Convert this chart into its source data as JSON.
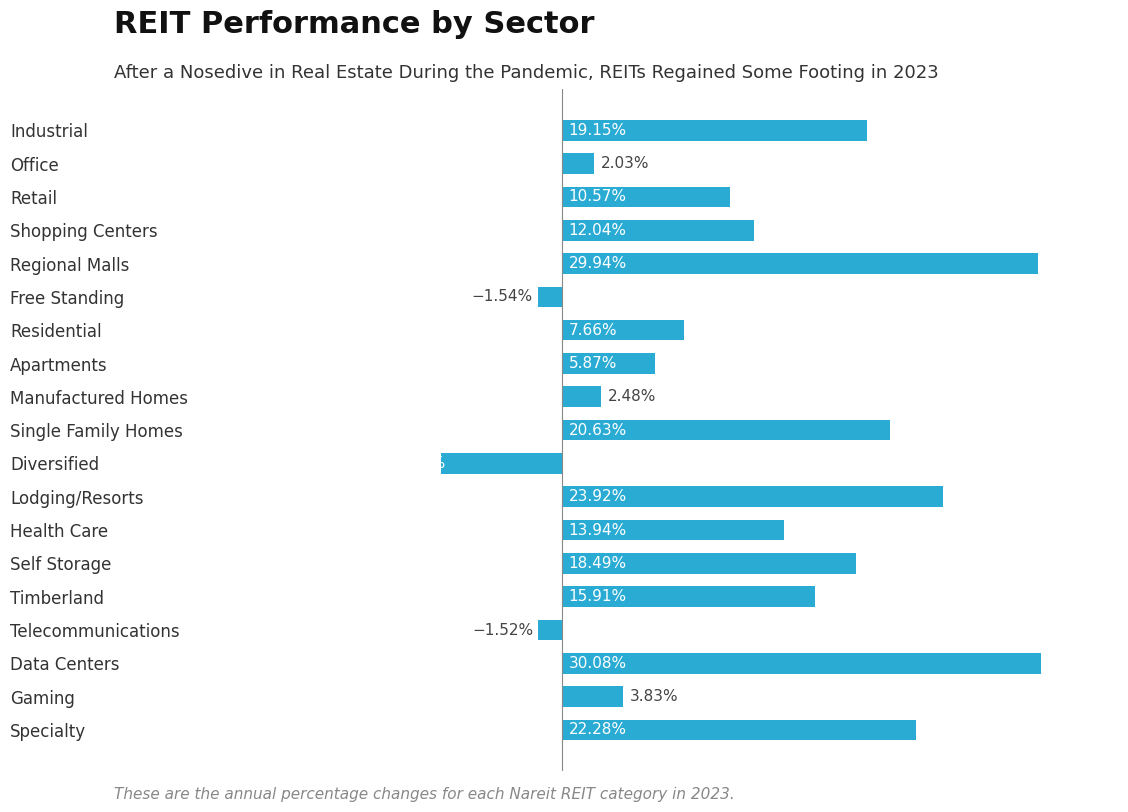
{
  "title": "REIT Performance by Sector",
  "subtitle": "After a Nosedive in Real Estate During the Pandemic, REITs Regained Some Footing in 2023",
  "footnote": "These are the annual percentage changes for each Nareit REIT category in 2023.",
  "bar_color": "#29ABD4",
  "background_color": "#ffffff",
  "categories": [
    "Industrial",
    "Office",
    "Retail",
    "Shopping Centers",
    "Regional Malls",
    "Free Standing",
    "Residential",
    "Apartments",
    "Manufactured Homes",
    "Single Family Homes",
    "Diversified",
    "Lodging/Resorts",
    "Health Care",
    "Self Storage",
    "Timberland",
    "Telecommunications",
    "Data Centers",
    "Gaming",
    "Specialty"
  ],
  "values": [
    19.15,
    2.03,
    10.57,
    12.04,
    29.94,
    -1.54,
    7.66,
    5.87,
    2.48,
    20.63,
    -7.59,
    23.92,
    13.94,
    18.49,
    15.91,
    -1.52,
    30.08,
    3.83,
    22.28
  ],
  "xlim": [
    -12,
    35
  ],
  "small_positive_threshold": 4.5,
  "large_negative_threshold": -4.0,
  "title_fontsize": 22,
  "subtitle_fontsize": 13,
  "footnote_fontsize": 11,
  "label_fontsize": 11,
  "category_fontsize": 12,
  "bar_height": 0.62
}
